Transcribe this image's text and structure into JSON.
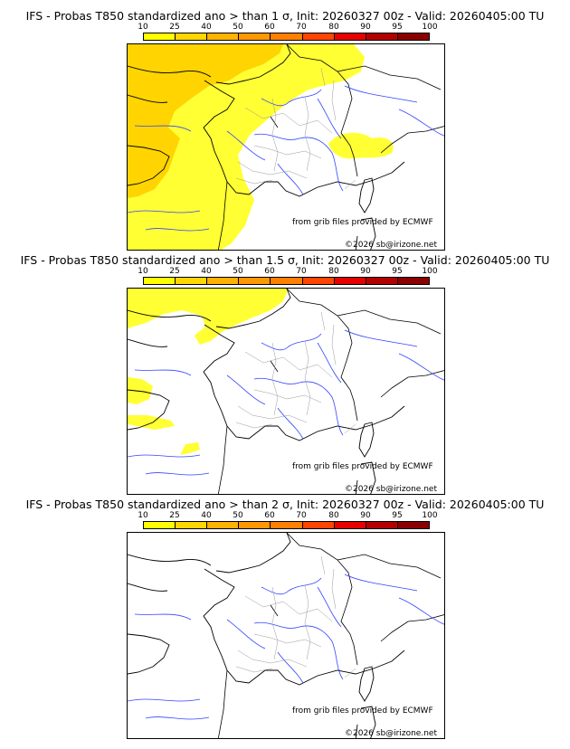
{
  "colorbar": {
    "ticks": [
      "10",
      "25",
      "40",
      "50",
      "60",
      "70",
      "80",
      "90",
      "95",
      "100"
    ],
    "colors": [
      "#ffff00",
      "#ffd700",
      "#ffb200",
      "#ff9800",
      "#ff7f00",
      "#ff4500",
      "#e60000",
      "#b40000",
      "#8b0000",
      "#550000"
    ]
  },
  "panels": [
    {
      "title": "IFS - Probas T850  standardized ano > than 1 σ, Init: 20260327 00z - Valid: 20260405:00 TU",
      "source_credit": "from grib files provided by ECMWF",
      "copyright": "©2026 sb@irizone.net"
    },
    {
      "title": "IFS - Probas T850  standardized ano > than 1.5 σ, Init: 20260327 00z - Valid: 20260405:00 TU",
      "source_credit": "from grib files provided by ECMWF",
      "copyright": "©2026 sb@irizone.net"
    },
    {
      "title": "IFS - Probas T850  standardized ano > than 2 σ, Init: 20260327 00z - Valid: 20260405:00 TU",
      "source_credit": "from grib files provided by ECMWF",
      "copyright": "©2026 sb@irizone.net"
    }
  ]
}
